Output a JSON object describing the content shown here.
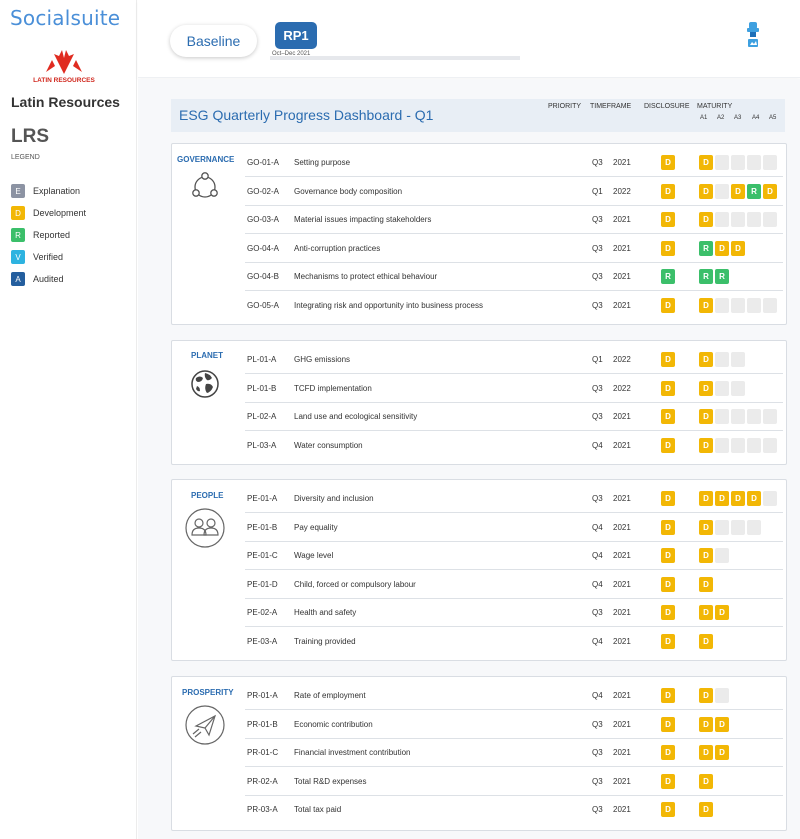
{
  "brand": {
    "name": "Socialsuite"
  },
  "client": {
    "logo_text": "LATIN RESOURCES",
    "name": "Latin Resources",
    "code": "LRS"
  },
  "legend": {
    "title": "LEGEND",
    "items": [
      {
        "key": "E",
        "label": "Explanation",
        "color": "#8c93a3"
      },
      {
        "key": "D",
        "label": "Development",
        "color": "#f2b705"
      },
      {
        "key": "R",
        "label": "Reported",
        "color": "#3bbf6a"
      },
      {
        "key": "V",
        "label": "Verified",
        "color": "#2db3e0"
      },
      {
        "key": "A",
        "label": "Audited",
        "color": "#245e9e"
      }
    ]
  },
  "topbar": {
    "baseline_label": "Baseline",
    "period_label": "RP1",
    "period_sub": "Oct–Dec 2021"
  },
  "dashboard": {
    "title": "ESG Quarterly Progress Dashboard - Q1",
    "columns": {
      "priority": "PRIORITY",
      "timeframe": "TIMEFRAME",
      "disclosure": "DISCLOSURE",
      "maturity": "MATURITY",
      "maturity_levels": [
        "A1",
        "A2",
        "A3",
        "A4",
        "A5"
      ]
    }
  },
  "sections": [
    {
      "label": "GOVERNANCE",
      "icon": "governance-icon",
      "rows": [
        {
          "code": "GO-01-A",
          "name": "Setting purpose",
          "quarter": "Q3",
          "year": "2021",
          "disclosure": "D",
          "maturity": [
            "D",
            "",
            "",
            "",
            ""
          ]
        },
        {
          "code": "GO-02-A",
          "name": "Governance body composition",
          "quarter": "Q1",
          "year": "2022",
          "disclosure": "D",
          "maturity": [
            "D",
            "",
            "D",
            "R",
            "D"
          ]
        },
        {
          "code": "GO-03-A",
          "name": "Material issues impacting stakeholders",
          "quarter": "Q3",
          "year": "2021",
          "disclosure": "D",
          "maturity": [
            "D",
            "",
            "",
            "",
            ""
          ]
        },
        {
          "code": "GO-04-A",
          "name": "Anti-corruption practices",
          "quarter": "Q3",
          "year": "2021",
          "disclosure": "D",
          "maturity": [
            "R",
            "D",
            "D"
          ]
        },
        {
          "code": "GO-04-B",
          "name": "Mechanisms to protect ethical behaviour",
          "quarter": "Q3",
          "year": "2021",
          "disclosure": "R",
          "maturity": [
            "R",
            "R"
          ]
        },
        {
          "code": "GO-05-A",
          "name": "Integrating risk and opportunity into business process",
          "quarter": "Q3",
          "year": "2021",
          "disclosure": "D",
          "maturity": [
            "D",
            "",
            "",
            "",
            ""
          ]
        }
      ]
    },
    {
      "label": "PLANET",
      "icon": "globe-icon",
      "rows": [
        {
          "code": "PL-01-A",
          "name": "GHG emissions",
          "quarter": "Q1",
          "year": "2022",
          "disclosure": "D",
          "maturity": [
            "D",
            "",
            ""
          ]
        },
        {
          "code": "PL-01-B",
          "name": "TCFD implementation",
          "quarter": "Q3",
          "year": "2022",
          "disclosure": "D",
          "maturity": [
            "D",
            "",
            ""
          ]
        },
        {
          "code": "PL-02-A",
          "name": "Land use and ecological sensitivity",
          "quarter": "Q3",
          "year": "2021",
          "disclosure": "D",
          "maturity": [
            "D",
            "",
            "",
            "",
            ""
          ]
        },
        {
          "code": "PL-03-A",
          "name": "Water consumption",
          "quarter": "Q4",
          "year": "2021",
          "disclosure": "D",
          "maturity": [
            "D",
            "",
            "",
            "",
            ""
          ]
        }
      ]
    },
    {
      "label": "PEOPLE",
      "icon": "people-icon",
      "rows": [
        {
          "code": "PE-01-A",
          "name": "Diversity and inclusion",
          "quarter": "Q3",
          "year": "2021",
          "disclosure": "D",
          "maturity": [
            "D",
            "D",
            "D",
            "D",
            ""
          ]
        },
        {
          "code": "PE-01-B",
          "name": "Pay equality",
          "quarter": "Q4",
          "year": "2021",
          "disclosure": "D",
          "maturity": [
            "D",
            "",
            "",
            ""
          ]
        },
        {
          "code": "PE-01-C",
          "name": "Wage level",
          "quarter": "Q4",
          "year": "2021",
          "disclosure": "D",
          "maturity": [
            "D",
            ""
          ]
        },
        {
          "code": "PE-01-D",
          "name": "Child, forced or compulsory labour",
          "quarter": "Q4",
          "year": "2021",
          "disclosure": "D",
          "maturity": [
            "D"
          ]
        },
        {
          "code": "PE-02-A",
          "name": "Health and safety",
          "quarter": "Q3",
          "year": "2021",
          "disclosure": "D",
          "maturity": [
            "D",
            "D"
          ]
        },
        {
          "code": "PE-03-A",
          "name": "Training provided",
          "quarter": "Q4",
          "year": "2021",
          "disclosure": "D",
          "maturity": [
            "D"
          ]
        }
      ]
    },
    {
      "label": "PROSPERITY",
      "icon": "paper-plane-icon",
      "rows": [
        {
          "code": "PR-01-A",
          "name": "Rate of employment",
          "quarter": "Q4",
          "year": "2021",
          "disclosure": "D",
          "maturity": [
            "D",
            ""
          ]
        },
        {
          "code": "PR-01-B",
          "name": "Economic contribution",
          "quarter": "Q3",
          "year": "2021",
          "disclosure": "D",
          "maturity": [
            "D",
            "D"
          ]
        },
        {
          "code": "PR-01-C",
          "name": "Financial investment contribution",
          "quarter": "Q3",
          "year": "2021",
          "disclosure": "D",
          "maturity": [
            "D",
            "D"
          ]
        },
        {
          "code": "PR-02-A",
          "name": "Total R&D expenses",
          "quarter": "Q3",
          "year": "2021",
          "disclosure": "D",
          "maturity": [
            "D"
          ]
        },
        {
          "code": "PR-03-A",
          "name": "Total tax paid",
          "quarter": "Q3",
          "year": "2021",
          "disclosure": "D",
          "maturity": [
            "D"
          ]
        }
      ]
    }
  ]
}
